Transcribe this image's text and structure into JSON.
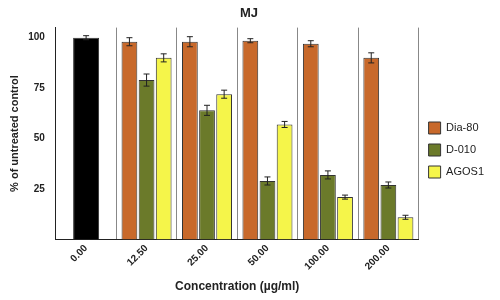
{
  "chart_data": {
    "type": "bar",
    "title": "MJ",
    "x_label": "Concentration (µg/ml)",
    "y_label": "% of untreated control",
    "categories": [
      "0.00",
      "12.50",
      "25.00",
      "50.00",
      "100.00",
      "200.00"
    ],
    "series": [
      {
        "color": "#000000",
        "values": [
          100,
          null,
          null,
          null,
          null,
          null
        ],
        "errors": [
          1,
          null,
          null,
          null,
          null,
          null
        ]
      },
      {
        "name": "Dia-80",
        "color": "#c8692b",
        "values": [
          null,
          98,
          98,
          98.5,
          97,
          90
        ],
        "errors": [
          null,
          2,
          2.5,
          1,
          1.5,
          2.5
        ]
      },
      {
        "name": "D-010",
        "color": "#6b7a2a",
        "values": [
          null,
          79,
          64,
          29,
          32,
          27
        ],
        "errors": [
          null,
          3,
          2.5,
          2,
          2,
          1.5
        ]
      },
      {
        "name": "AGOS1",
        "color": "#f5f54a",
        "values": [
          null,
          90,
          72,
          57,
          21,
          11
        ],
        "errors": [
          null,
          2,
          2,
          1.5,
          1,
          1
        ]
      }
    ],
    "ylim": [
      0,
      105
    ],
    "yticks": [
      25,
      50,
      75,
      100
    ],
    "grid": true,
    "legend": "right"
  }
}
